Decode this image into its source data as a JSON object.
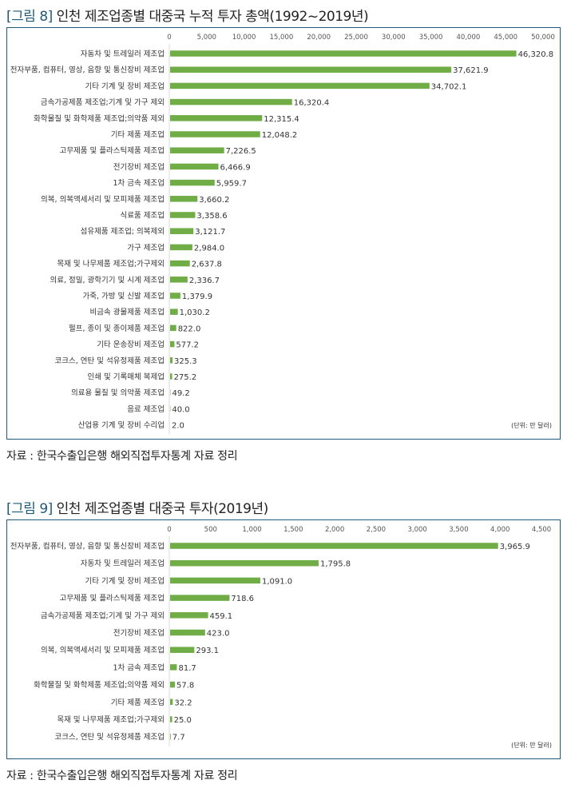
{
  "figures": [
    {
      "label": "[그림 8]",
      "title": "인천 제조업종별 대중국 누적 투자 총액(1992~2019년)",
      "source": "자료 : 한국수출입은행 해외직접투자통계 자료 정리"
    },
    {
      "label": "[그림 9]",
      "title": "인천 제조업종별 대중국 투자(2019년)",
      "source": "자료 : 한국수출입은행 해외직접투자통계 자료 정리"
    }
  ],
  "chart_data": [
    {
      "type": "bar",
      "orientation": "horizontal",
      "title": "인천 제조업종별 대중국 누적 투자 총액(1992~2019년)",
      "unit_note": "(단위: 만 달러)",
      "bar_color": "#70ad47",
      "xlim": [
        0,
        50000
      ],
      "ticks": [
        "0",
        "5,000",
        "10,000",
        "15,000",
        "20,000",
        "25,000",
        "30,000",
        "35,000",
        "40,000",
        "45,000",
        "50,000"
      ],
      "tick_values": [
        0,
        5000,
        10000,
        15000,
        20000,
        25000,
        30000,
        35000,
        40000,
        45000,
        50000
      ],
      "categories": [
        "자동차 및 트레일러 제조업",
        "전자부품, 컴퓨터, 영상, 음향 및 통신장비 제조업",
        "기타 기계 및 장비 제조업",
        "금속가공제품 제조업;기계 및 가구 제외",
        "화학물질 및 화학제품 제조업;의약품 제외",
        "기타 제품 제조업",
        "고무제품 및 플라스틱제품 제조업",
        "전기장비 제조업",
        "1차 금속 제조업",
        "의복, 의복액세서리 및 모피제품 제조업",
        "식료품 제조업",
        "섬유제품 제조업; 의복제외",
        "가구 제조업",
        "목재 및 나무제품 제조업;가구제외",
        "의료, 정밀, 광학기기 및 시계 제조업",
        "가죽, 가방 및 신발 제조업",
        "비금속 광물제품 제조업",
        "펄프, 종이 및 종이제품 제조업",
        "기타 운송장비 제조업",
        "코크스, 연탄 및 석유정제품 제조업",
        "인쇄 및 기록매체 복제업",
        "의료용 물질 및 의약품 제조업",
        "음료 제조업",
        "산업용 기계 및 장비 수리업"
      ],
      "values": [
        46320.8,
        37621.9,
        34702.1,
        16320.4,
        12315.4,
        12048.2,
        7226.5,
        6466.9,
        5959.7,
        3660.2,
        3358.6,
        3121.7,
        2984.0,
        2637.8,
        2336.7,
        1379.9,
        1030.2,
        822.0,
        577.2,
        325.3,
        275.2,
        49.2,
        40.0,
        2.0
      ],
      "value_labels": [
        "46,320.8",
        "37,621.9",
        "34,702.1",
        "16,320.4",
        "12,315.4",
        "12,048.2",
        "7,226.5",
        "6,466.9",
        "5,959.7",
        "3,660.2",
        "3,358.6",
        "3,121.7",
        "2,984.0",
        "2,637.8",
        "2,336.7",
        "1,379.9",
        "1,030.2",
        "822.0",
        "577.2",
        "325.3",
        "275.2",
        "49.2",
        "40.0",
        "2.0"
      ]
    },
    {
      "type": "bar",
      "orientation": "horizontal",
      "title": "인천 제조업종별 대중국 투자(2019년)",
      "unit_note": "(단위: 만 달러)",
      "bar_color": "#70ad47",
      "xlim": [
        0,
        4500
      ],
      "ticks": [
        "0",
        "500",
        "1,000",
        "1,500",
        "2,000",
        "2,500",
        "3,000",
        "3,500",
        "4,000",
        "4,500"
      ],
      "tick_values": [
        0,
        500,
        1000,
        1500,
        2000,
        2500,
        3000,
        3500,
        4000,
        4500
      ],
      "categories": [
        "전자부품, 컴퓨터, 영상, 음향 및 통신장비 제조업",
        "자동차 및 트레일러 제조업",
        "기타 기계 및 장비 제조업",
        "고무제품 및 플라스틱제품 제조업",
        "금속가공제품 제조업;기계 및 가구 제외",
        "전기장비 제조업",
        "의복, 의복액세서리 및 모피제품 제조업",
        "1차 금속 제조업",
        "화학물질 및 화학제품 제조업;의약품 제외",
        "기타 제품 제조업",
        "목재 및 나무제품 제조업;가구제외",
        "코크스, 연탄 및 석유정제품 제조업"
      ],
      "values": [
        3965.9,
        1795.8,
        1091.0,
        718.6,
        459.1,
        423.0,
        293.1,
        81.7,
        57.8,
        32.2,
        25.0,
        7.7
      ],
      "value_labels": [
        "3,965.9",
        "1,795.8",
        "1,091.0",
        "718.6",
        "459.1",
        "423.0",
        "293.1",
        "81.7",
        "57.8",
        "32.2",
        "25.0",
        "7.7"
      ]
    }
  ]
}
